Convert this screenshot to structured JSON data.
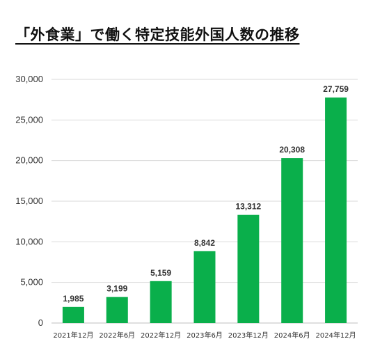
{
  "chart_data": {
    "type": "bar",
    "title": "「外食業」で働く特定技能外国人数の推移",
    "categories": [
      "2021年12月",
      "2022年6月",
      "2022年12月",
      "2023年6月",
      "2023年12月",
      "2024年6月",
      "2024年12月"
    ],
    "values": [
      1985,
      3199,
      5159,
      8842,
      13312,
      20308,
      27759
    ],
    "value_labels": [
      "1,985",
      "3,199",
      "5,159",
      "8,842",
      "13,312",
      "20,308",
      "27,759"
    ],
    "yticks": [
      0,
      5000,
      10000,
      15000,
      20000,
      25000,
      30000
    ],
    "ytick_labels": [
      "0",
      "5,000",
      "10,000",
      "15,000",
      "20,000",
      "25,000",
      "30,000"
    ],
    "ylim": [
      0,
      30000
    ],
    "xlabel": "",
    "ylabel": "",
    "grid": true,
    "bar_color": "#0aaf4b",
    "grid_color": "#d9d9d9"
  }
}
